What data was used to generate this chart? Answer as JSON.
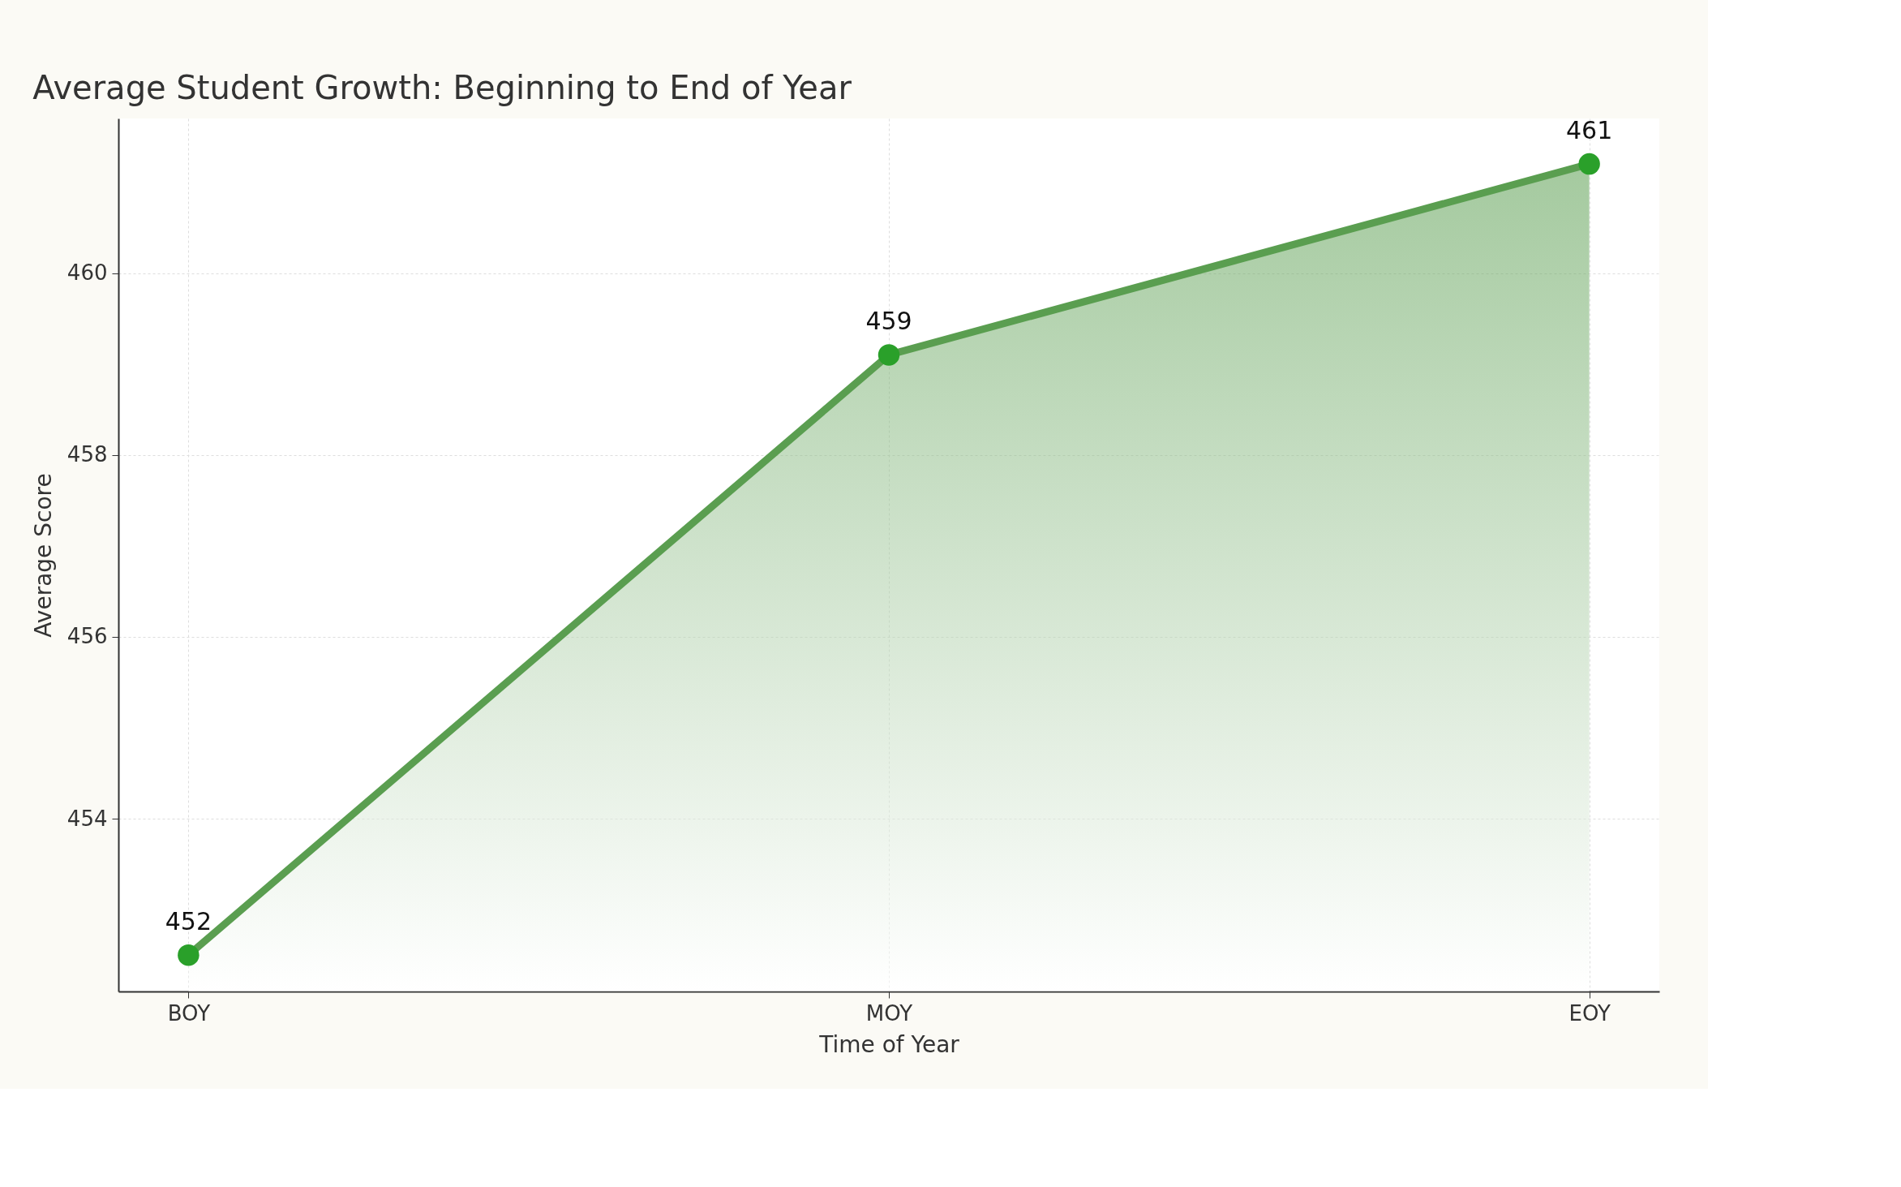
{
  "chart_data": {
    "type": "area",
    "title": "Average Student Growth: Beginning to End of Year",
    "xlabel": "Time of Year",
    "ylabel": "Average Score",
    "categories": [
      "BOY",
      "MOY",
      "EOY"
    ],
    "series": [
      {
        "color": "#5a9e50",
        "values": [
          452.5,
          459.1,
          461.2
        ],
        "value_labels": [
          "452",
          "459",
          "461"
        ]
      }
    ],
    "ylim": [
      452.1,
      461.7
    ],
    "yticks": [
      454,
      456,
      458,
      460
    ],
    "grid": true,
    "marker": "circle",
    "line_style": "solid"
  }
}
